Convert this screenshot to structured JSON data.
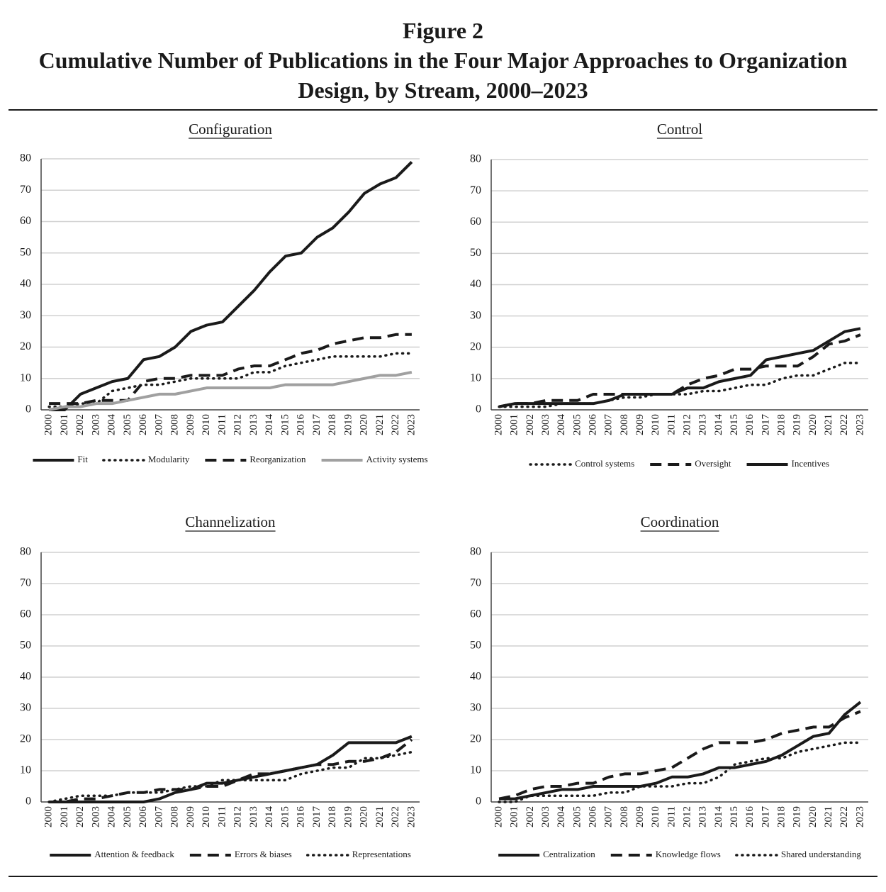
{
  "figure": {
    "label": "Figure 2",
    "title": "Cumulative Number of Publications in the Four Major Approaches to Organization Design, by Stream, 2000–2023"
  },
  "chart_data": [
    {
      "type": "line",
      "title": "Configuration",
      "categories": [
        "2000",
        "2001",
        "2002",
        "2003",
        "2004",
        "2005",
        "2006",
        "2007",
        "2008",
        "2009",
        "2010",
        "2011",
        "2012",
        "2013",
        "2014",
        "2015",
        "2016",
        "2017",
        "2018",
        "2019",
        "2020",
        "2021",
        "2022",
        "2023"
      ],
      "series": [
        {
          "name": "Fit",
          "color": "#1a1a1a",
          "dash": "solid",
          "values": [
            0,
            0,
            5,
            7,
            9,
            10,
            16,
            17,
            20,
            25,
            27,
            28,
            33,
            38,
            44,
            49,
            50,
            55,
            58,
            63,
            69,
            72,
            74,
            79
          ]
        },
        {
          "name": "Modularity",
          "color": "#1a1a1a",
          "dash": "dotted",
          "values": [
            1,
            1,
            2,
            2,
            6,
            7,
            8,
            8,
            9,
            10,
            10,
            10,
            10,
            12,
            12,
            14,
            15,
            16,
            17,
            17,
            17,
            17,
            18,
            18
          ]
        },
        {
          "name": "Reorganization",
          "color": "#1a1a1a",
          "dash": "dashed",
          "values": [
            2,
            2,
            2,
            3,
            3,
            3,
            9,
            10,
            10,
            11,
            11,
            11,
            13,
            14,
            14,
            16,
            18,
            19,
            21,
            22,
            23,
            23,
            24,
            24
          ]
        },
        {
          "name": "Activity systems",
          "color": "#a0a0a0",
          "dash": "solid",
          "values": [
            0,
            1,
            1,
            2,
            2,
            3,
            4,
            5,
            5,
            6,
            7,
            7,
            7,
            7,
            7,
            8,
            8,
            8,
            8,
            9,
            10,
            11,
            11,
            12
          ]
        }
      ],
      "ylim": [
        0,
        80
      ],
      "yticks": [
        0,
        10,
        20,
        30,
        40,
        50,
        60,
        70,
        80
      ],
      "grid": true,
      "legend": "bottom"
    },
    {
      "type": "line",
      "title": "Control",
      "categories": [
        "2000",
        "2001",
        "2002",
        "2003",
        "2004",
        "2005",
        "2006",
        "2007",
        "2008",
        "2009",
        "2010",
        "2011",
        "2012",
        "2013",
        "2014",
        "2015",
        "2016",
        "2017",
        "2018",
        "2019",
        "2020",
        "2021",
        "2022",
        "2023"
      ],
      "series": [
        {
          "name": "Control systems",
          "color": "#1a1a1a",
          "dash": "dotted",
          "values": [
            1,
            1,
            1,
            1,
            2,
            2,
            2,
            3,
            4,
            4,
            5,
            5,
            5,
            6,
            6,
            7,
            8,
            8,
            10,
            11,
            11,
            13,
            15,
            15
          ]
        },
        {
          "name": "Oversight",
          "color": "#1a1a1a",
          "dash": "dashed",
          "values": [
            1,
            2,
            2,
            3,
            3,
            3,
            5,
            5,
            5,
            5,
            5,
            5,
            8,
            10,
            11,
            13,
            13,
            14,
            14,
            14,
            17,
            21,
            22,
            24
          ]
        },
        {
          "name": "Incentives",
          "color": "#1a1a1a",
          "dash": "solid",
          "values": [
            1,
            2,
            2,
            2,
            2,
            2,
            2,
            3,
            5,
            5,
            5,
            5,
            7,
            7,
            9,
            10,
            11,
            16,
            17,
            18,
            19,
            22,
            25,
            26
          ]
        }
      ],
      "ylim": [
        0,
        80
      ],
      "yticks": [
        0,
        10,
        20,
        30,
        40,
        50,
        60,
        70,
        80
      ],
      "grid": true,
      "legend": "bottom"
    },
    {
      "type": "line",
      "title": "Channelization",
      "categories": [
        "2000",
        "2001",
        "2002",
        "2003",
        "2004",
        "2005",
        "2006",
        "2007",
        "2008",
        "2009",
        "2010",
        "2011",
        "2012",
        "2013",
        "2014",
        "2015",
        "2016",
        "2017",
        "2018",
        "2019",
        "2020",
        "2021",
        "2022",
        "2023"
      ],
      "series": [
        {
          "name": "Attention & feedback",
          "color": "#1a1a1a",
          "dash": "solid",
          "values": [
            0,
            0,
            0,
            0,
            0,
            0,
            0,
            1,
            3,
            4,
            6,
            6,
            7,
            8,
            9,
            10,
            11,
            12,
            15,
            19,
            19,
            19,
            19,
            21
          ]
        },
        {
          "name": "Errors & biases",
          "color": "#1a1a1a",
          "dash": "dashed",
          "values": [
            0,
            0,
            1,
            1,
            2,
            3,
            3,
            4,
            4,
            4,
            5,
            5,
            7,
            9,
            9,
            10,
            11,
            12,
            12,
            13,
            13,
            14,
            16,
            20
          ]
        },
        {
          "name": "Representations",
          "color": "#1a1a1a",
          "dash": "dotted",
          "values": [
            0,
            1,
            2,
            2,
            2,
            3,
            3,
            3,
            4,
            5,
            5,
            7,
            7,
            7,
            7,
            7,
            9,
            10,
            11,
            11,
            14,
            14,
            15,
            16
          ]
        }
      ],
      "ylim": [
        0,
        80
      ],
      "yticks": [
        0,
        10,
        20,
        30,
        40,
        50,
        60,
        70,
        80
      ],
      "grid": true,
      "legend": "bottom"
    },
    {
      "type": "line",
      "title": "Coordination",
      "categories": [
        "2000",
        "2001",
        "2002",
        "2003",
        "2004",
        "2005",
        "2006",
        "2007",
        "2008",
        "2009",
        "2010",
        "2011",
        "2012",
        "2013",
        "2014",
        "2015",
        "2016",
        "2017",
        "2018",
        "2019",
        "2020",
        "2021",
        "2022",
        "2023"
      ],
      "series": [
        {
          "name": "Centralization",
          "color": "#1a1a1a",
          "dash": "solid",
          "values": [
            1,
            1,
            2,
            3,
            4,
            4,
            5,
            5,
            5,
            5,
            6,
            8,
            8,
            9,
            11,
            11,
            12,
            13,
            15,
            18,
            21,
            22,
            28,
            32
          ]
        },
        {
          "name": "Knowledge flows",
          "color": "#1a1a1a",
          "dash": "dashed",
          "values": [
            1,
            2,
            4,
            5,
            5,
            6,
            6,
            8,
            9,
            9,
            10,
            11,
            14,
            17,
            19,
            19,
            19,
            20,
            22,
            23,
            24,
            24,
            27,
            29
          ]
        },
        {
          "name": "Shared understanding",
          "color": "#1a1a1a",
          "dash": "dotted",
          "values": [
            0,
            0,
            2,
            2,
            2,
            2,
            2,
            3,
            3,
            5,
            5,
            5,
            6,
            6,
            8,
            12,
            13,
            14,
            14,
            16,
            17,
            18,
            19,
            19
          ]
        }
      ],
      "ylim": [
        0,
        80
      ],
      "yticks": [
        0,
        10,
        20,
        30,
        40,
        50,
        60,
        70,
        80
      ],
      "grid": true,
      "legend": "bottom"
    }
  ]
}
